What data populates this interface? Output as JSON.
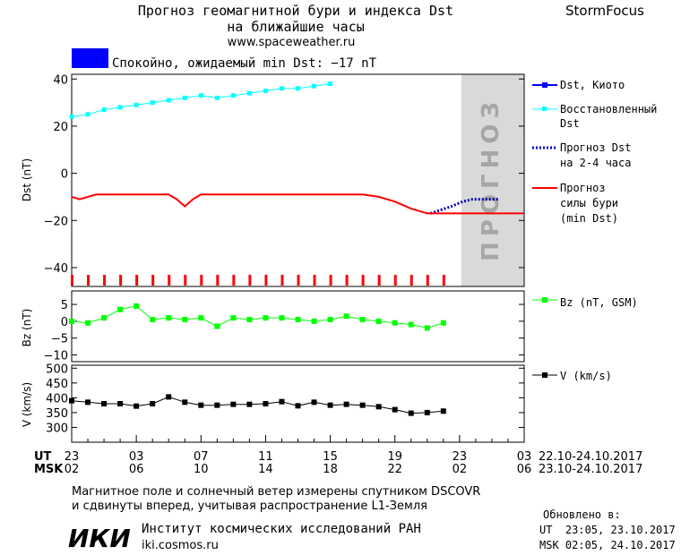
{
  "header": {
    "title_line1": "Прогноз геомагнитной бури и индекса Dst",
    "title_line2": "на ближайшие часы",
    "url": "www.spaceweather.ru",
    "brand": "StormFocus"
  },
  "status": {
    "text": "Спокойно, ожидаемый min Dst: −17 nT",
    "color": "#0000ff"
  },
  "colors": {
    "kyoto": "#0000ff",
    "restored": "#00ffff",
    "forecast_dst": "#0000bb",
    "storm": "#ff0000",
    "bz": "#00ff00",
    "v": "#000000",
    "forecast_band": "#d9d9d9",
    "forecast_text": "#a6a6a6"
  },
  "legend": {
    "kyoto": "Dst, Киото",
    "restored_1": "Восстановленный",
    "restored_2": "Dst",
    "forecast_1": "Прогноз Dst",
    "forecast_2": "на 2-4 часа",
    "storm_1": "Прогноз",
    "storm_2": "силы бури",
    "storm_3": "(min Dst)",
    "bz": "Bz (nT, GSM)",
    "v": "V (km/s)"
  },
  "forecast_label": "ПРОГНОЗ",
  "time_axis": {
    "ut_label": "UT",
    "msk_label": "MSK",
    "ut_ticks": [
      "23",
      "03",
      "07",
      "11",
      "15",
      "19",
      "23",
      "03"
    ],
    "msk_ticks": [
      "02",
      "06",
      "10",
      "14",
      "18",
      "22",
      "02",
      "06"
    ],
    "ut_range": "22.10-24.10.2017",
    "msk_range": "23.10-24.10.2017"
  },
  "footer": {
    "note_line1": "Магнитное поле и солнечный ветер измерены спутником DSCOVR",
    "note_line2": "и сдвинуты вперед, учитывая распространение L1-Земля",
    "logo": "ИКИ",
    "institute": "Институт космических исследований РАН",
    "site": "iki.cosmos.ru",
    "updated_label": "Обновлено в:",
    "updated_ut": "UT  23:05, 23.10.2017",
    "updated_msk": "MSK 02:05, 24.10.2017"
  },
  "chart_data": [
    {
      "type": "line",
      "panel": "dst",
      "ylabel": "Dst (nT)",
      "x_unit": "hours since 23 UT 22.10.2017",
      "xlim": [
        0,
        28
      ],
      "ylim": [
        -48,
        42
      ],
      "yticks": [
        -40,
        -20,
        0,
        20,
        40
      ],
      "forecast_region": [
        23,
        28
      ],
      "series": [
        {
          "name": "Восстановленный Dst",
          "x": [
            0,
            1,
            2,
            3,
            4,
            5,
            6,
            7,
            8,
            9,
            10,
            11,
            12,
            13,
            14,
            15,
            16
          ],
          "values": [
            24,
            25,
            27,
            28,
            29,
            30,
            31,
            32,
            33,
            32,
            33,
            34,
            35,
            36,
            36,
            37,
            38
          ]
        },
        {
          "name": "Прогноз Dst на 2-4 часа",
          "x": [
            22.2,
            23.5,
            24.2,
            24.8,
            25.5,
            26.4
          ],
          "values": [
            -17,
            -14,
            -12,
            -11,
            -11,
            -11
          ]
        },
        {
          "name": "Прогноз силы бури (min Dst)",
          "x": [
            0,
            0.5,
            1,
            1.5,
            2,
            3,
            4,
            5,
            6,
            6.5,
            7,
            7.5,
            8,
            9,
            10,
            11,
            12,
            13,
            14,
            15,
            16,
            17,
            18,
            19,
            20,
            21,
            22,
            23,
            24,
            25,
            26,
            27,
            28
          ],
          "values": [
            -10,
            -11,
            -10,
            -9,
            -9,
            -9,
            -9,
            -9,
            -9,
            -11,
            -14,
            -11,
            -9,
            -9,
            -9,
            -9,
            -9,
            -9,
            -9,
            -9,
            -9,
            -9,
            -9,
            -10,
            -12,
            -15,
            -17,
            -17,
            -17,
            -17,
            -17,
            -17,
            -17
          ]
        }
      ]
    },
    {
      "type": "line",
      "panel": "bz",
      "ylabel": "Bz (nT)",
      "x_unit": "hours since 23 UT 22.10.2017",
      "xlim": [
        0,
        28
      ],
      "ylim": [
        -12,
        9
      ],
      "yticks": [
        -10,
        -5,
        0,
        5
      ],
      "series": [
        {
          "name": "Bz (nT, GSM)",
          "x": [
            0,
            1,
            2,
            3,
            4,
            5,
            6,
            7,
            8,
            9,
            10,
            11,
            12,
            13,
            14,
            15,
            16,
            17,
            18,
            19,
            20,
            21,
            22,
            23
          ],
          "values": [
            0,
            -0.5,
            1,
            3.5,
            4.5,
            0.5,
            1,
            0.5,
            1,
            -1.5,
            1,
            0.5,
            1,
            1,
            0.5,
            0,
            0.5,
            1.5,
            0.5,
            0,
            -0.5,
            -1,
            -2,
            -0.5
          ]
        }
      ]
    },
    {
      "type": "line",
      "panel": "v",
      "ylabel": "V (km/s)",
      "x_unit": "hours since 23 UT 22.10.2017",
      "xlim": [
        0,
        28
      ],
      "ylim": [
        250,
        510
      ],
      "yticks": [
        300,
        350,
        400,
        450,
        500
      ],
      "series": [
        {
          "name": "V (km/s)",
          "x": [
            0,
            1,
            2,
            3,
            4,
            5,
            6,
            7,
            8,
            9,
            10,
            11,
            12,
            13,
            14,
            15,
            16,
            17,
            18,
            19,
            20,
            21,
            22,
            23
          ],
          "values": [
            390,
            385,
            380,
            380,
            372,
            380,
            403,
            385,
            375,
            375,
            378,
            378,
            380,
            387,
            373,
            385,
            375,
            378,
            375,
            370,
            360,
            348,
            350,
            355
          ]
        }
      ]
    }
  ]
}
